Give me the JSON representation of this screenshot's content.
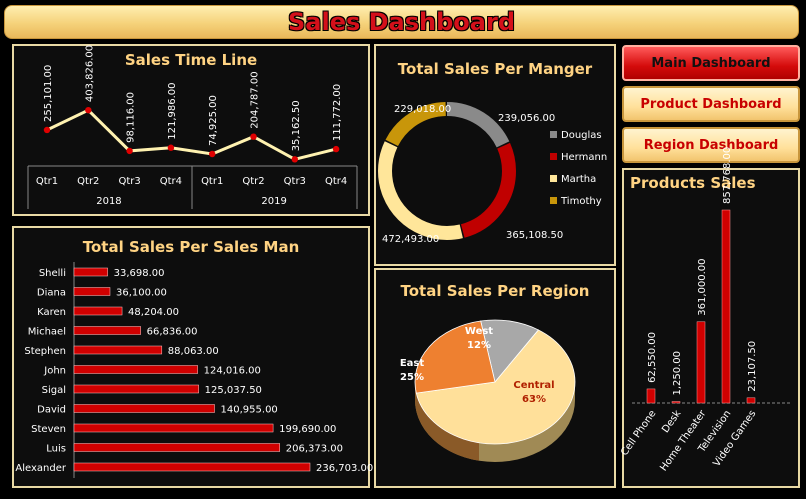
{
  "header": {
    "title": "Sales Dashboard"
  },
  "navigation": [
    {
      "label": "Main Dashboard",
      "active": true
    },
    {
      "label": "Product Dashboard",
      "active": false
    },
    {
      "label": "Region Dashboard",
      "active": false
    }
  ],
  "colors": {
    "accent": "#cc0000",
    "line": "#fff2b0",
    "border": "#e8d9a4",
    "title": "#ffd383"
  },
  "chart_data": [
    {
      "id": "timeline",
      "type": "line",
      "title": "Sales Time Line",
      "categories": [
        "Qtr1",
        "Qtr2",
        "Qtr3",
        "Qtr4",
        "Qtr1",
        "Qtr2",
        "Qtr3",
        "Qtr4"
      ],
      "groups": [
        {
          "label": "2018",
          "span": 4
        },
        {
          "label": "2019",
          "span": 4
        }
      ],
      "values": [
        255101,
        403826,
        98116,
        121986,
        74925,
        204787,
        35162.5,
        111772
      ],
      "labels": [
        "255,101.00",
        "403,826.00",
        "98,116.00",
        "121,986.00",
        "74,925.00",
        "204,787.00",
        "35,162.50",
        "111,772.00"
      ],
      "ylim": [
        0,
        420000
      ]
    },
    {
      "id": "salesman",
      "type": "bar",
      "orientation": "horizontal",
      "title": "Total Sales Per Sales Man",
      "categories": [
        "Shelli",
        "Diana",
        "Karen",
        "Michael",
        "Stephen",
        "John",
        "Sigal",
        "David",
        "Steven",
        "Luis",
        "Alexander"
      ],
      "values": [
        33698,
        36100,
        48204,
        66836,
        88063,
        124016,
        125037.5,
        140955,
        199690,
        206373,
        236703
      ],
      "labels": [
        "33,698.00",
        "36,100.00",
        "48,204.00",
        "66,836.00",
        "88,063.00",
        "124,016.00",
        "125,037.50",
        "140,955.00",
        "199,690.00",
        "206,373.00",
        "236,703.00"
      ]
    },
    {
      "id": "manager",
      "type": "pie",
      "variant": "donut",
      "title": "Total Sales Per Manger",
      "slices": [
        {
          "name": "Douglas",
          "value": 239056,
          "label": "239,056.00",
          "color": "#8a8a8a"
        },
        {
          "name": "Hermann",
          "value": 365108.5,
          "label": "365,108.50",
          "color": "#c00000"
        },
        {
          "name": "Martha",
          "value": 472493,
          "label": "472,493.00",
          "color": "#ffe69a"
        },
        {
          "name": "Timothy",
          "value": 229018,
          "label": "229,018.00",
          "color": "#c8960a"
        }
      ],
      "legend": "right"
    },
    {
      "id": "region",
      "type": "pie",
      "variant": "3d",
      "title": "Total Sales Per Region",
      "slices": [
        {
          "name": "Central",
          "pct": 63,
          "label": "63%",
          "color": "#ffe09a"
        },
        {
          "name": "East",
          "pct": 25,
          "label": "25%",
          "color": "#ee8030"
        },
        {
          "name": "West",
          "pct": 12,
          "label": "12%",
          "color": "#a8a8a8"
        }
      ]
    },
    {
      "id": "products",
      "type": "bar",
      "orientation": "vertical",
      "title": "Products  Sales",
      "categories": [
        "Cell Phone",
        "Desk",
        "Home Theater",
        "Television",
        "Video Games"
      ],
      "values": [
        62550,
        1250,
        361000,
        857768,
        23107.5
      ],
      "labels": [
        "62,550.00",
        "1,250.00",
        "361,000.00",
        "857,768.00",
        "23,107.50"
      ]
    }
  ]
}
